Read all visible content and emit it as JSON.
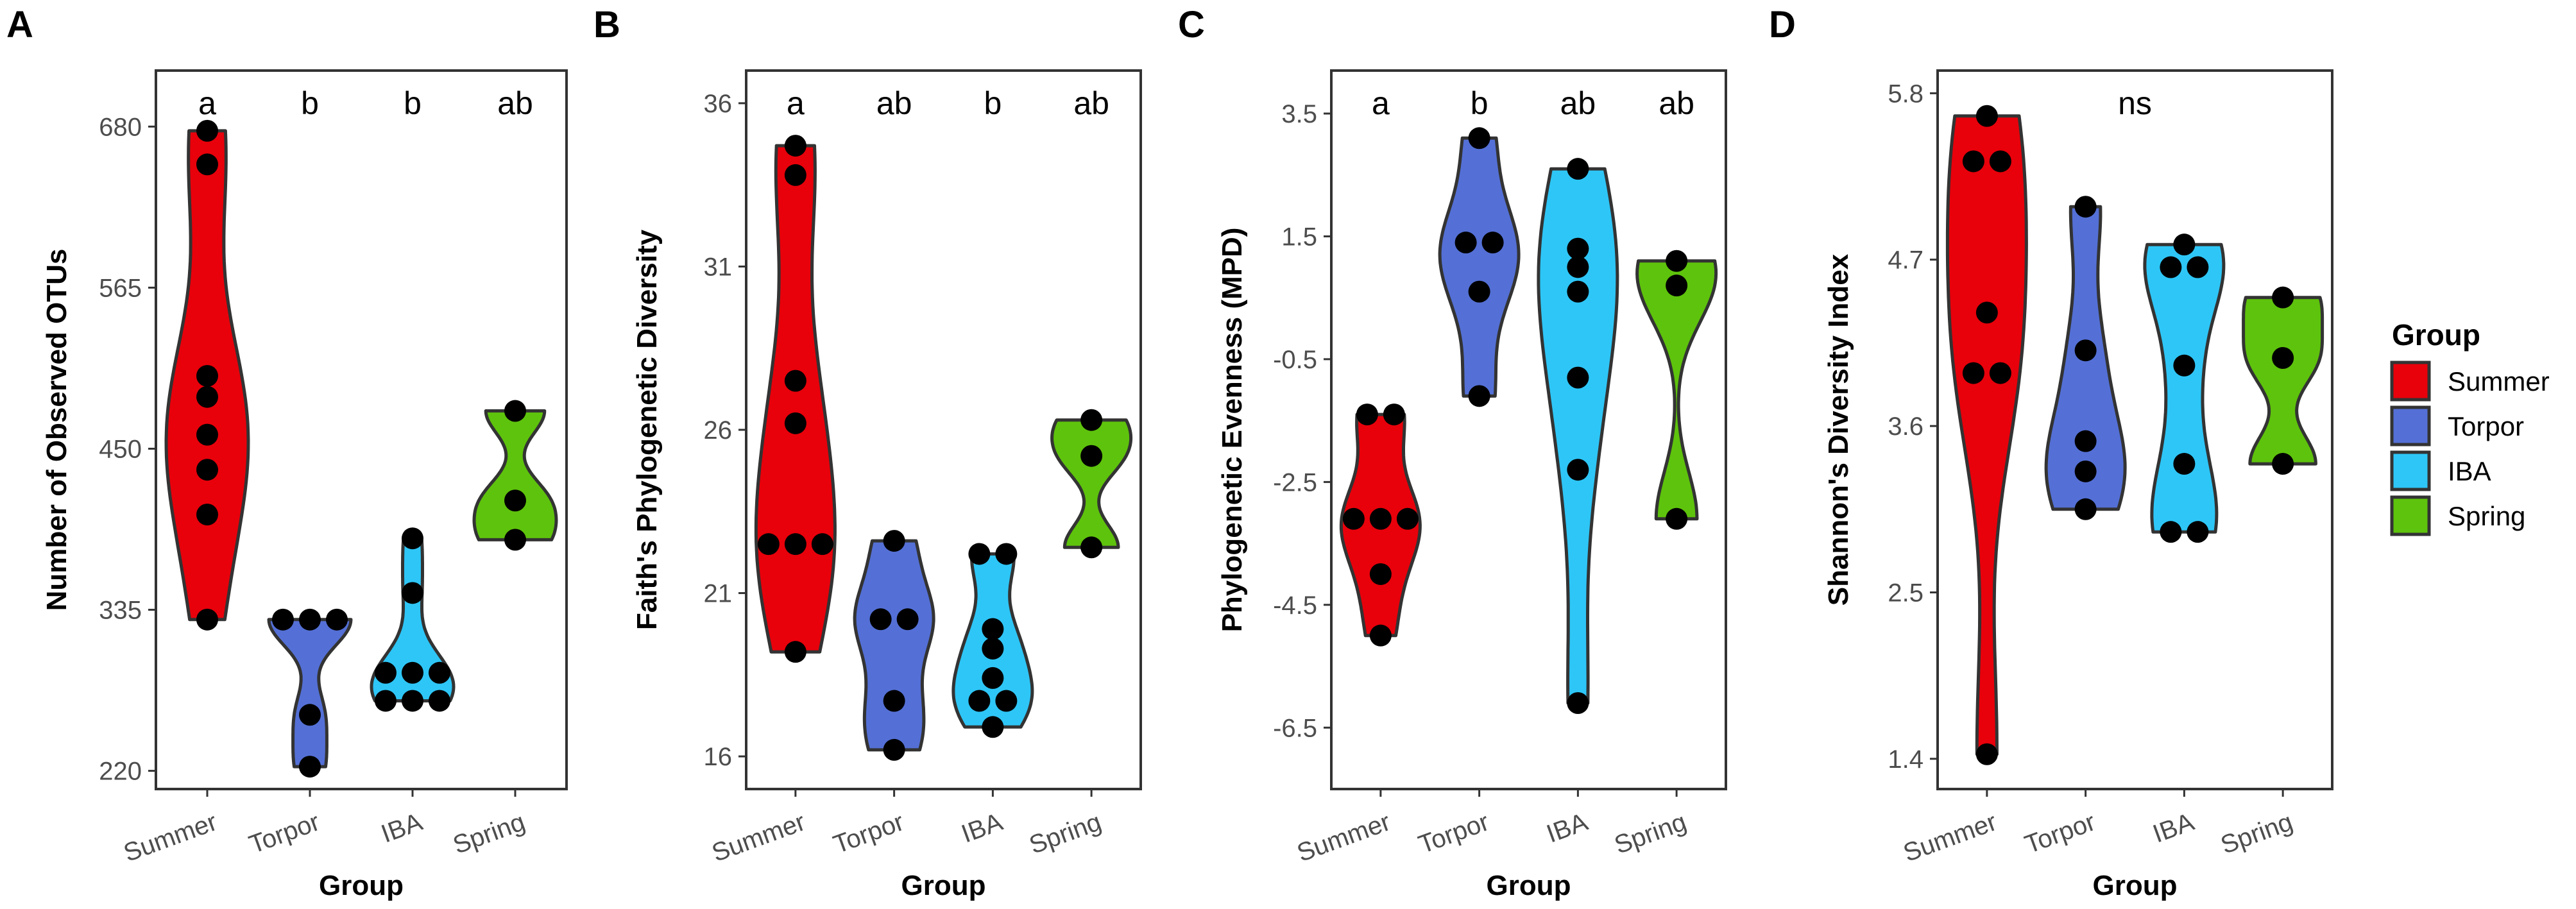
{
  "legend": {
    "title": "Group",
    "items": [
      {
        "label": "Summer",
        "color": "#e8000b"
      },
      {
        "label": "Torpor",
        "color": "#5470d6"
      },
      {
        "label": "IBA",
        "color": "#2ec6f7"
      },
      {
        "label": "Spring",
        "color": "#5ec30c"
      }
    ]
  },
  "chart_data": [
    {
      "type": "violin",
      "panel": "A",
      "xlabel": "Group",
      "ylabel": "Number of Observed OTUs",
      "categories": [
        "Summer",
        "Torpor",
        "IBA",
        "Spring"
      ],
      "ylim": [
        207,
        720
      ],
      "yticks": [
        220,
        335,
        450,
        565,
        680
      ],
      "ytick_labels": [
        "220",
        "335",
        "450",
        "565",
        "680"
      ],
      "letters": [
        "a",
        "b",
        "b",
        "ab"
      ],
      "points": [
        [
          677,
          653,
          502,
          487,
          460,
          435,
          403,
          328
        ],
        [
          328,
          328,
          328,
          260,
          223
        ],
        [
          386,
          347,
          290,
          290,
          290,
          270,
          270,
          270
        ],
        [
          477,
          413,
          385
        ]
      ]
    },
    {
      "type": "violin",
      "panel": "B",
      "xlabel": "Group",
      "ylabel": "Faith's Phylogenetic Diversity",
      "categories": [
        "Summer",
        "Torpor",
        "IBA",
        "Spring"
      ],
      "ylim": [
        15.0,
        37.0
      ],
      "yticks": [
        16,
        21,
        26,
        31,
        36
      ],
      "ytick_labels": [
        "16",
        "21",
        "26",
        "31",
        "36"
      ],
      "letters": [
        "a",
        "ab",
        "b",
        "ab"
      ],
      "points": [
        [
          34.7,
          33.8,
          27.5,
          26.2,
          22.5,
          22.5,
          22.5,
          19.2
        ],
        [
          22.6,
          20.2,
          20.2,
          17.7,
          16.2
        ],
        [
          22.2,
          22.2,
          19.9,
          19.3,
          18.4,
          17.7,
          17.7,
          16.9
        ],
        [
          26.3,
          25.2,
          22.4
        ]
      ]
    },
    {
      "type": "violin",
      "panel": "C",
      "xlabel": "Group",
      "ylabel": "Phylogenetic Evenness (MPD)",
      "categories": [
        "Summer",
        "Torpor",
        "IBA",
        "Spring"
      ],
      "ylim": [
        -7.5,
        4.2
      ],
      "yticks": [
        -6.5,
        -4.5,
        -2.5,
        -0.5,
        1.5,
        3.5
      ],
      "ytick_labels": [
        "-6.5",
        "-4.5",
        "-2.5",
        "-0.5",
        "1.5",
        "3.5"
      ],
      "letters": [
        "a",
        "b",
        "ab",
        "ab"
      ],
      "points": [
        [
          -1.4,
          -1.4,
          -3.1,
          -3.1,
          -3.1,
          -4.0,
          -5.0
        ],
        [
          3.1,
          1.4,
          1.4,
          0.6,
          -1.1
        ],
        [
          2.6,
          1.3,
          1.0,
          0.6,
          -0.8,
          -2.3,
          -6.1
        ],
        [
          1.1,
          0.7,
          -3.1
        ]
      ]
    },
    {
      "type": "violin",
      "panel": "D",
      "xlabel": "Group",
      "ylabel": "Shannon's Diversity Index",
      "categories": [
        "Summer",
        "Torpor",
        "IBA",
        "Spring"
      ],
      "ylim": [
        1.2,
        5.95
      ],
      "yticks": [
        1.4,
        2.5,
        3.6,
        4.7,
        5.8
      ],
      "ytick_labels": [
        "1.4",
        "2.5",
        "3.6",
        "4.7",
        "5.8"
      ],
      "letters": [
        "ns",
        "",
        "",
        ""
      ],
      "points": [
        [
          5.65,
          5.35,
          5.35,
          4.35,
          3.95,
          3.95,
          1.43
        ],
        [
          5.05,
          4.1,
          3.5,
          3.3,
          3.05
        ],
        [
          4.8,
          4.65,
          4.65,
          4.0,
          3.35,
          2.9,
          2.9
        ],
        [
          4.45,
          4.05,
          3.35
        ]
      ]
    }
  ]
}
